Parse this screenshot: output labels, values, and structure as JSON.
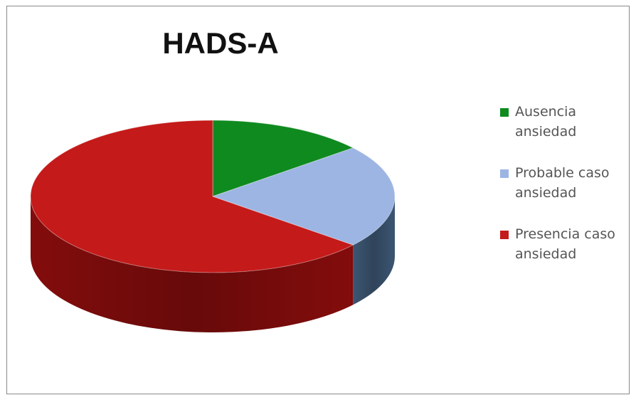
{
  "chart_data": {
    "type": "pie",
    "title": "HADS-A",
    "slices": [
      {
        "label": "Ausencia ansiedad",
        "value": 14,
        "color": "#0f8a1f",
        "side_color": "#0a5e14"
      },
      {
        "label": "Probable caso ansiedad",
        "value": 22,
        "color": "#9db5e3",
        "side_color": "#3f5a78"
      },
      {
        "label": "Presencia caso ansiedad",
        "value": 64,
        "color": "#c41a1a",
        "side_color": "#8a0d0d"
      }
    ],
    "legend_position": "right",
    "three_d": true
  }
}
